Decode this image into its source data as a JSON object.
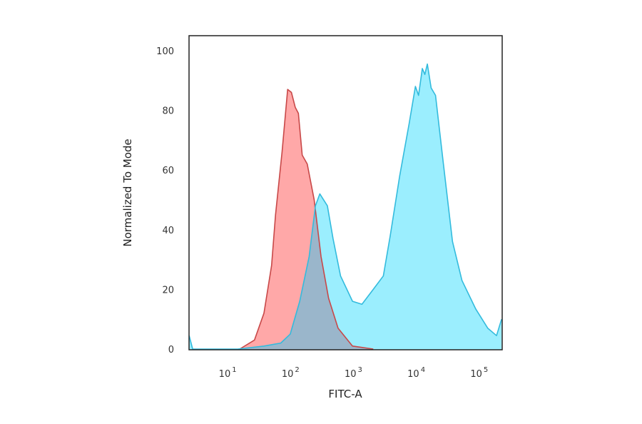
{
  "chart_data": {
    "type": "area",
    "title": "",
    "xlabel": "FITC-A",
    "ylabel": "Normalized To Mode",
    "xscale": "log",
    "xlim": [
      2.19,
      208930
    ],
    "ylim": [
      0,
      105
    ],
    "grid": false,
    "legend": "none",
    "xticks": [
      {
        "value": 10,
        "base": "10",
        "exp": "1"
      },
      {
        "value": 100,
        "base": "10",
        "exp": "2"
      },
      {
        "value": 1000,
        "base": "10",
        "exp": "3"
      },
      {
        "value": 10000,
        "base": "10",
        "exp": "4"
      },
      {
        "value": 100000,
        "base": "10",
        "exp": "5"
      }
    ],
    "yticks": [
      "0",
      "20",
      "40",
      "60",
      "80",
      "100"
    ],
    "series": [
      {
        "color_fill": "#ffa8a8",
        "color_line": "#c84848",
        "x": [
          14,
          24,
          34,
          45,
          52,
          66,
          81,
          93,
          107,
          120,
          138,
          166,
          214,
          275,
          363,
          513,
          871,
          1862
        ],
        "y": [
          0,
          3,
          12,
          28,
          45,
          66,
          87,
          86,
          81,
          79,
          65,
          62,
          50,
          31,
          17,
          7,
          1,
          0
        ]
      },
      {
        "color_fill": "#9beefe",
        "color_line": "#33bbdd",
        "x": [
          2.2,
          2.5,
          13,
          34,
          63,
          89,
          126,
          178,
          224,
          263,
          347,
          427,
          562,
          871,
          1230,
          1862,
          2692,
          3467,
          4898,
          6918,
          8710,
          9772,
          11220,
          12303,
          13490,
          15488,
          18197,
          23988,
          33884,
          47863,
          79433,
          123027,
          169824,
          204174
        ],
        "y": [
          4.5,
          0,
          0,
          1,
          2,
          5,
          16,
          31,
          48,
          52,
          48,
          37,
          24.5,
          16,
          15,
          20,
          24.5,
          38,
          58,
          75.5,
          88,
          85,
          94,
          92,
          95.5,
          87.5,
          85,
          63,
          36,
          23,
          13.4,
          7,
          4.5,
          10
        ]
      }
    ],
    "overlap_color": "#9ab6cb"
  }
}
